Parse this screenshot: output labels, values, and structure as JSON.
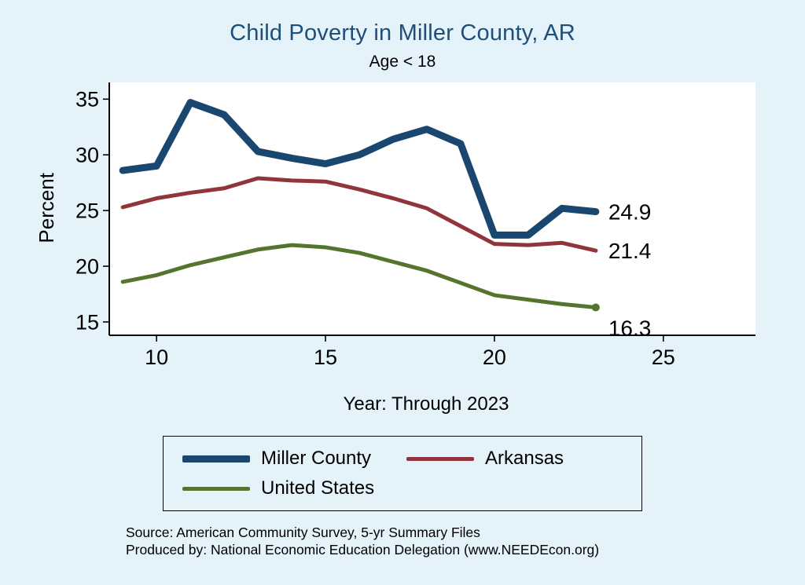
{
  "page": {
    "background": "#e4f2f9"
  },
  "title": {
    "text": "Child Poverty in Miller County, AR",
    "color": "#1f4e79"
  },
  "subtitle": "Age < 18",
  "chart_data": {
    "type": "line",
    "x": [
      9,
      10,
      11,
      12,
      13,
      14,
      15,
      16,
      17,
      18,
      19,
      20,
      21,
      22,
      23
    ],
    "series": [
      {
        "name": "Miller County",
        "color": "#1a476f",
        "width": 9,
        "end_label": "24.9",
        "label_dy": 0,
        "end_marker": false,
        "values": [
          28.6,
          29.0,
          34.7,
          33.6,
          30.3,
          29.7,
          29.2,
          30.0,
          31.4,
          32.3,
          31.0,
          22.8,
          22.8,
          25.2,
          24.9
        ]
      },
      {
        "name": "Arkansas",
        "color": "#90353b",
        "width": 5,
        "end_label": "21.4",
        "label_dy": 0,
        "end_marker": false,
        "values": [
          25.3,
          26.1,
          26.6,
          27.0,
          27.9,
          27.7,
          27.6,
          26.9,
          26.1,
          25.2,
          23.6,
          22.0,
          21.9,
          22.1,
          21.4
        ]
      },
      {
        "name": "United States",
        "color": "#55752f",
        "width": 5,
        "end_label": "16.3",
        "label_dy": 26,
        "end_marker": true,
        "values": [
          18.6,
          19.2,
          20.1,
          20.8,
          21.5,
          21.9,
          21.7,
          21.2,
          20.4,
          19.6,
          18.5,
          17.4,
          17.0,
          16.6,
          16.3
        ]
      }
    ],
    "title": "Child Poverty in Miller County, AR",
    "subtitle": "Age < 18",
    "xlabel": "Year: Through 2023",
    "ylabel": "Percent",
    "xlim": [
      8.6,
      25.4
    ],
    "ylim": [
      13.8,
      36.5
    ],
    "xticks": [
      10,
      15,
      20,
      25
    ],
    "yticks": [
      15,
      20,
      25,
      30,
      35
    ],
    "grid": false,
    "legend_position": "bottom"
  },
  "footer": {
    "line1": "Source: American Community Survey, 5-yr Summary Files",
    "line2": "Produced by: National Economic Education Delegation (www.NEEDEcon.org)"
  }
}
